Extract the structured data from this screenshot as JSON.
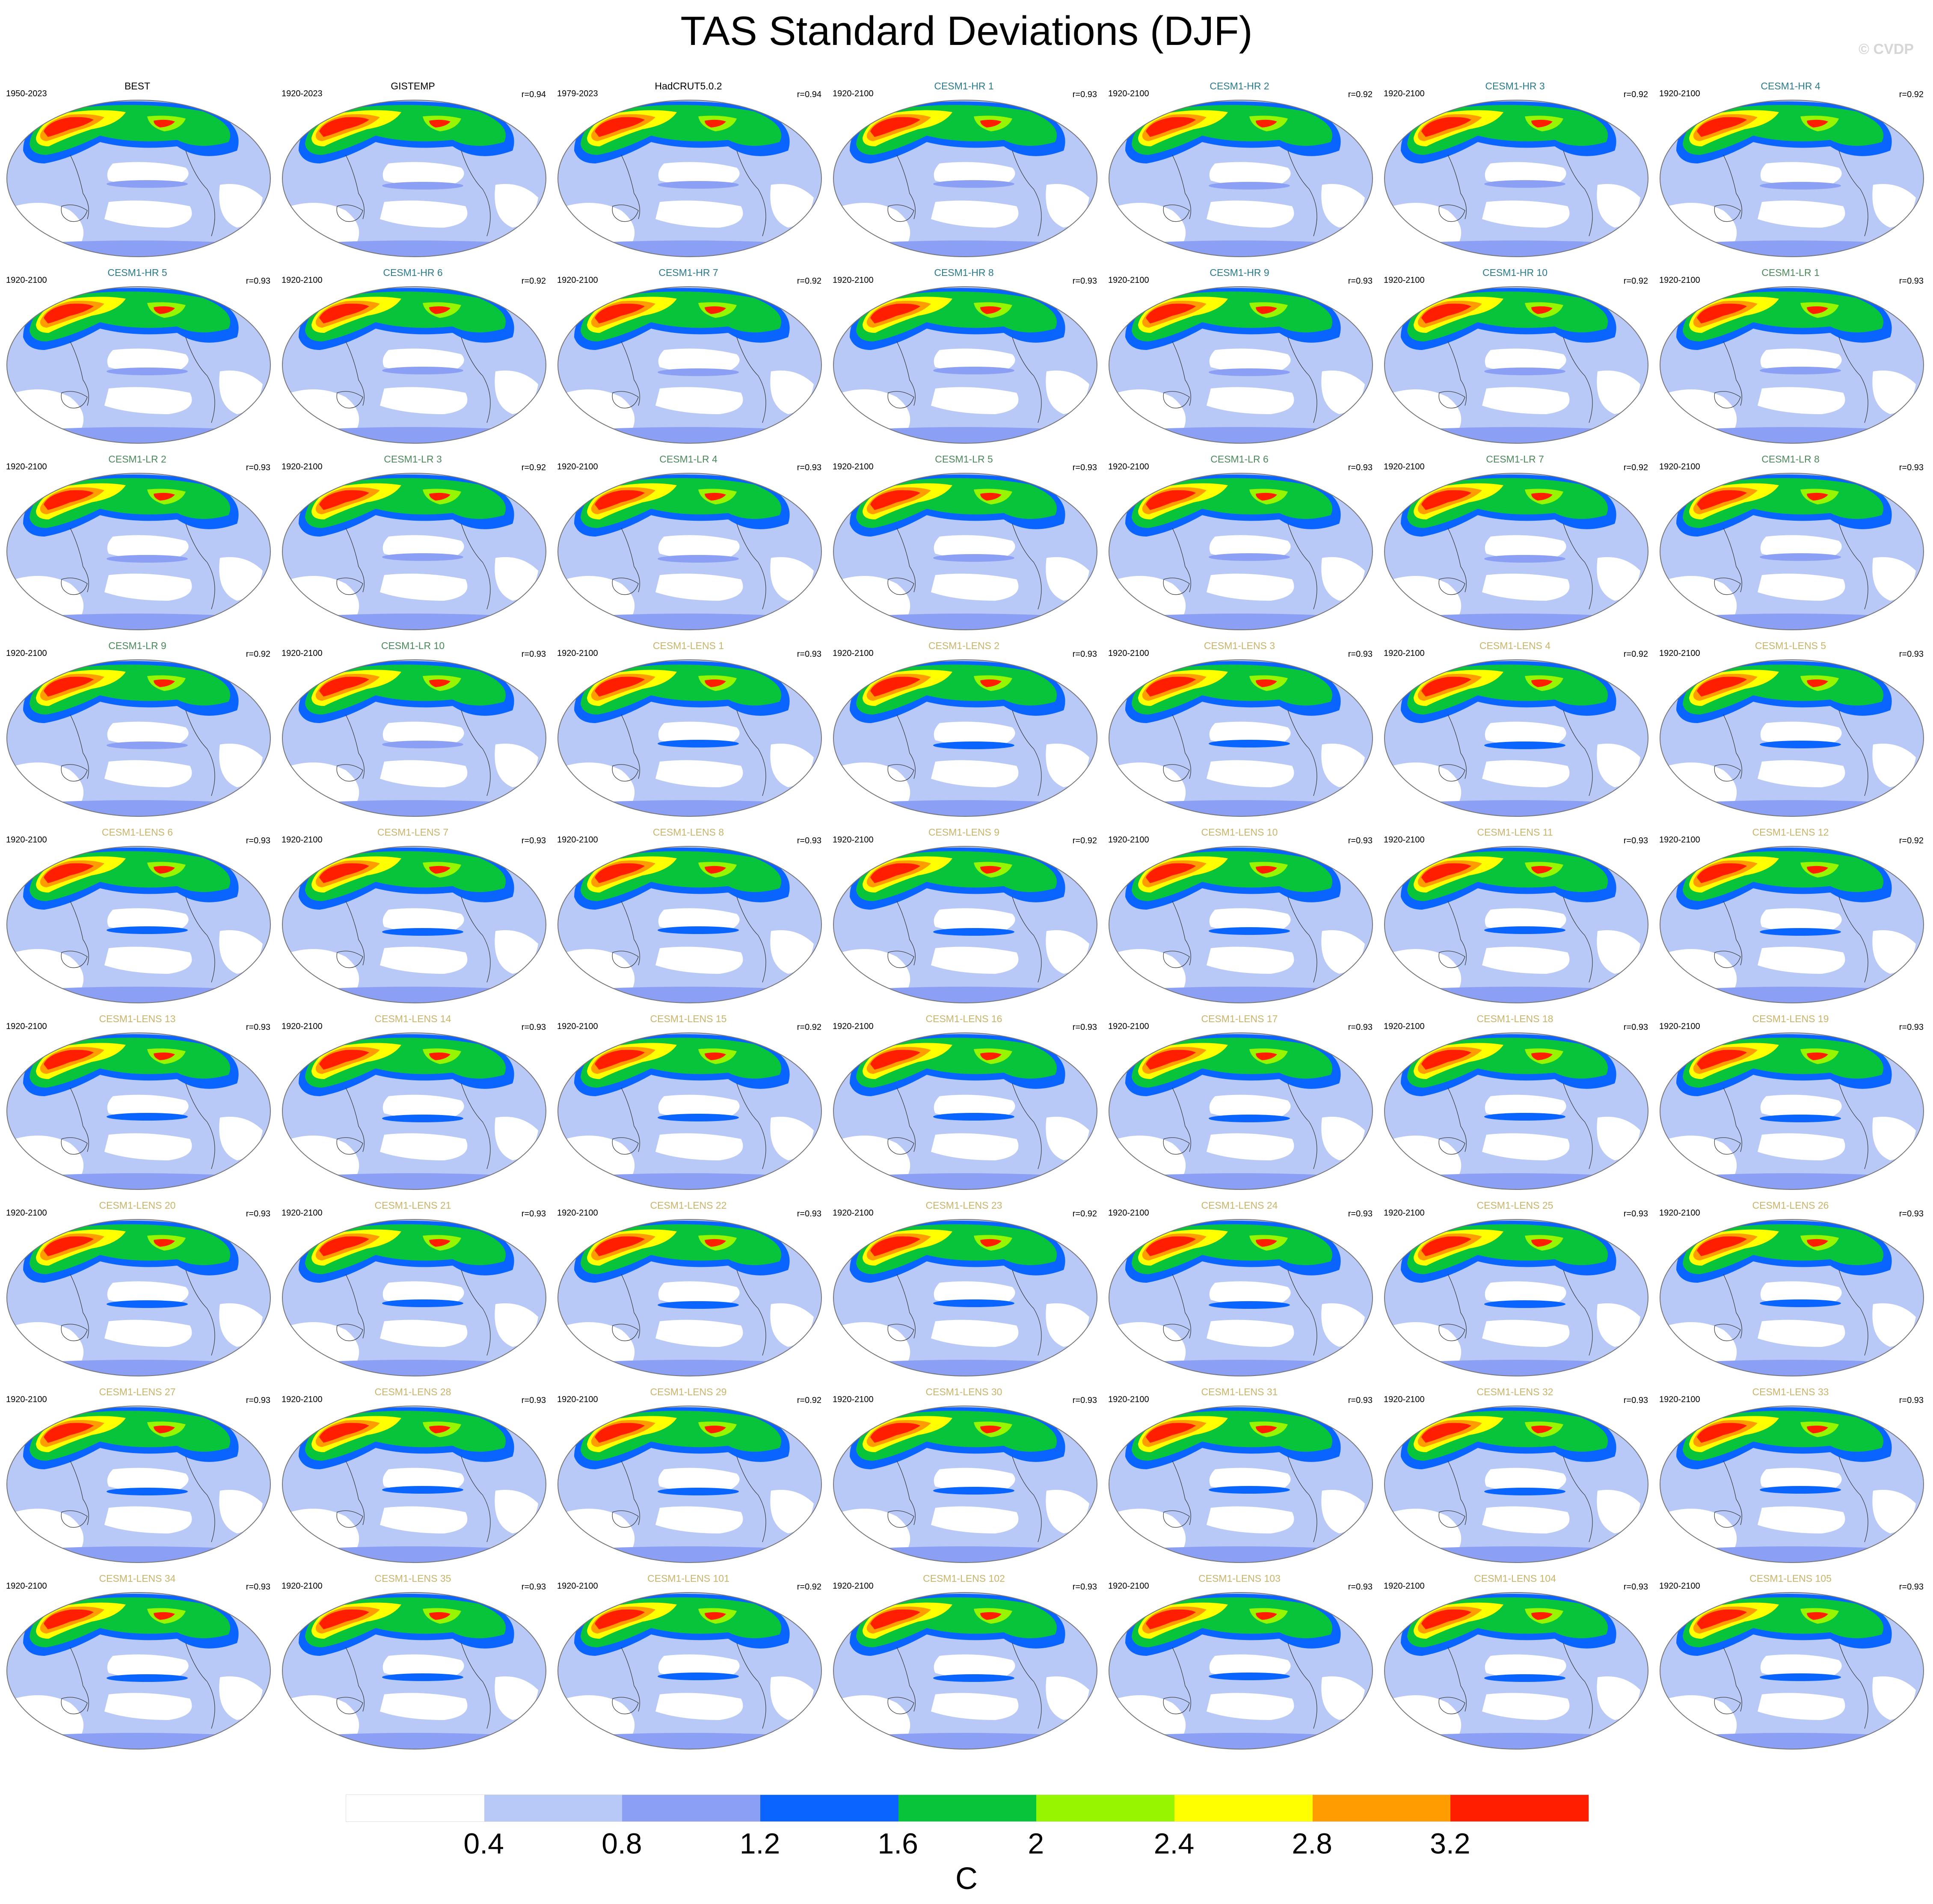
{
  "title": "TAS Standard Deviations (DJF)",
  "credit": "© CVDP",
  "colors": {
    "levels": [
      "#ffffff",
      "#b8c9f8",
      "#8b9ff5",
      "#0a64ff",
      "#08c43a",
      "#98f500",
      "#ffff00",
      "#ff9c00",
      "#ff1e00"
    ],
    "name_obs": "#000000",
    "name_hr": "#2a7b8c",
    "name_lr": "#4a8a5a",
    "name_lens": "#c9b46a"
  },
  "colorbar": {
    "ticks": [
      "0.4",
      "0.8",
      "1.2",
      "1.6",
      "2",
      "2.4",
      "2.8",
      "3.2"
    ],
    "units": "C"
  },
  "panels": [
    {
      "name": "BEST",
      "period": "1950-2023",
      "r": "",
      "group": "obs"
    },
    {
      "name": "GISTEMP",
      "period": "1920-2023",
      "r": "r=0.94",
      "group": "obs"
    },
    {
      "name": "HadCRUT5.0.2",
      "period": "1979-2023",
      "r": "r=0.94",
      "group": "obs"
    },
    {
      "name": "CESM1-HR 1",
      "period": "1920-2100",
      "r": "r=0.93",
      "group": "hr"
    },
    {
      "name": "CESM1-HR 2",
      "period": "1920-2100",
      "r": "r=0.92",
      "group": "hr"
    },
    {
      "name": "CESM1-HR 3",
      "period": "1920-2100",
      "r": "r=0.92",
      "group": "hr"
    },
    {
      "name": "CESM1-HR 4",
      "period": "1920-2100",
      "r": "r=0.92",
      "group": "hr"
    },
    {
      "name": "CESM1-HR 5",
      "period": "1920-2100",
      "r": "r=0.93",
      "group": "hr"
    },
    {
      "name": "CESM1-HR 6",
      "period": "1920-2100",
      "r": "r=0.92",
      "group": "hr"
    },
    {
      "name": "CESM1-HR 7",
      "period": "1920-2100",
      "r": "r=0.92",
      "group": "hr"
    },
    {
      "name": "CESM1-HR 8",
      "period": "1920-2100",
      "r": "r=0.93",
      "group": "hr"
    },
    {
      "name": "CESM1-HR 9",
      "period": "1920-2100",
      "r": "r=0.93",
      "group": "hr"
    },
    {
      "name": "CESM1-HR 10",
      "period": "1920-2100",
      "r": "r=0.92",
      "group": "hr"
    },
    {
      "name": "CESM1-LR 1",
      "period": "1920-2100",
      "r": "r=0.93",
      "group": "lr"
    },
    {
      "name": "CESM1-LR 2",
      "period": "1920-2100",
      "r": "r=0.93",
      "group": "lr"
    },
    {
      "name": "CESM1-LR 3",
      "period": "1920-2100",
      "r": "r=0.92",
      "group": "lr"
    },
    {
      "name": "CESM1-LR 4",
      "period": "1920-2100",
      "r": "r=0.93",
      "group": "lr"
    },
    {
      "name": "CESM1-LR 5",
      "period": "1920-2100",
      "r": "r=0.93",
      "group": "lr"
    },
    {
      "name": "CESM1-LR 6",
      "period": "1920-2100",
      "r": "r=0.93",
      "group": "lr"
    },
    {
      "name": "CESM1-LR 7",
      "period": "1920-2100",
      "r": "r=0.92",
      "group": "lr"
    },
    {
      "name": "CESM1-LR 8",
      "period": "1920-2100",
      "r": "r=0.93",
      "group": "lr"
    },
    {
      "name": "CESM1-LR 9",
      "period": "1920-2100",
      "r": "r=0.92",
      "group": "lr"
    },
    {
      "name": "CESM1-LR 10",
      "period": "1920-2100",
      "r": "r=0.93",
      "group": "lr"
    },
    {
      "name": "CESM1-LENS 1",
      "period": "1920-2100",
      "r": "r=0.93",
      "group": "lens"
    },
    {
      "name": "CESM1-LENS 2",
      "period": "1920-2100",
      "r": "r=0.93",
      "group": "lens"
    },
    {
      "name": "CESM1-LENS 3",
      "period": "1920-2100",
      "r": "r=0.93",
      "group": "lens"
    },
    {
      "name": "CESM1-LENS 4",
      "period": "1920-2100",
      "r": "r=0.92",
      "group": "lens"
    },
    {
      "name": "CESM1-LENS 5",
      "period": "1920-2100",
      "r": "r=0.93",
      "group": "lens"
    },
    {
      "name": "CESM1-LENS 6",
      "period": "1920-2100",
      "r": "r=0.93",
      "group": "lens"
    },
    {
      "name": "CESM1-LENS 7",
      "period": "1920-2100",
      "r": "r=0.93",
      "group": "lens"
    },
    {
      "name": "CESM1-LENS 8",
      "period": "1920-2100",
      "r": "r=0.93",
      "group": "lens"
    },
    {
      "name": "CESM1-LENS 9",
      "period": "1920-2100",
      "r": "r=0.92",
      "group": "lens"
    },
    {
      "name": "CESM1-LENS 10",
      "period": "1920-2100",
      "r": "r=0.93",
      "group": "lens"
    },
    {
      "name": "CESM1-LENS 11",
      "period": "1920-2100",
      "r": "r=0.93",
      "group": "lens"
    },
    {
      "name": "CESM1-LENS 12",
      "period": "1920-2100",
      "r": "r=0.92",
      "group": "lens"
    },
    {
      "name": "CESM1-LENS 13",
      "period": "1920-2100",
      "r": "r=0.93",
      "group": "lens"
    },
    {
      "name": "CESM1-LENS 14",
      "period": "1920-2100",
      "r": "r=0.93",
      "group": "lens"
    },
    {
      "name": "CESM1-LENS 15",
      "period": "1920-2100",
      "r": "r=0.92",
      "group": "lens"
    },
    {
      "name": "CESM1-LENS 16",
      "period": "1920-2100",
      "r": "r=0.93",
      "group": "lens"
    },
    {
      "name": "CESM1-LENS 17",
      "period": "1920-2100",
      "r": "r=0.93",
      "group": "lens"
    },
    {
      "name": "CESM1-LENS 18",
      "period": "1920-2100",
      "r": "r=0.93",
      "group": "lens"
    },
    {
      "name": "CESM1-LENS 19",
      "period": "1920-2100",
      "r": "r=0.93",
      "group": "lens"
    },
    {
      "name": "CESM1-LENS 20",
      "period": "1920-2100",
      "r": "r=0.93",
      "group": "lens"
    },
    {
      "name": "CESM1-LENS 21",
      "period": "1920-2100",
      "r": "r=0.93",
      "group": "lens"
    },
    {
      "name": "CESM1-LENS 22",
      "period": "1920-2100",
      "r": "r=0.93",
      "group": "lens"
    },
    {
      "name": "CESM1-LENS 23",
      "period": "1920-2100",
      "r": "r=0.92",
      "group": "lens"
    },
    {
      "name": "CESM1-LENS 24",
      "period": "1920-2100",
      "r": "r=0.93",
      "group": "lens"
    },
    {
      "name": "CESM1-LENS 25",
      "period": "1920-2100",
      "r": "r=0.93",
      "group": "lens"
    },
    {
      "name": "CESM1-LENS 26",
      "period": "1920-2100",
      "r": "r=0.93",
      "group": "lens"
    },
    {
      "name": "CESM1-LENS 27",
      "period": "1920-2100",
      "r": "r=0.93",
      "group": "lens"
    },
    {
      "name": "CESM1-LENS 28",
      "period": "1920-2100",
      "r": "r=0.93",
      "group": "lens"
    },
    {
      "name": "CESM1-LENS 29",
      "period": "1920-2100",
      "r": "r=0.92",
      "group": "lens"
    },
    {
      "name": "CESM1-LENS 30",
      "period": "1920-2100",
      "r": "r=0.93",
      "group": "lens"
    },
    {
      "name": "CESM1-LENS 31",
      "period": "1920-2100",
      "r": "r=0.93",
      "group": "lens"
    },
    {
      "name": "CESM1-LENS 32",
      "period": "1920-2100",
      "r": "r=0.93",
      "group": "lens"
    },
    {
      "name": "CESM1-LENS 33",
      "period": "1920-2100",
      "r": "r=0.93",
      "group": "lens"
    },
    {
      "name": "CESM1-LENS 34",
      "period": "1920-2100",
      "r": "r=0.93",
      "group": "lens"
    },
    {
      "name": "CESM1-LENS 35",
      "period": "1920-2100",
      "r": "r=0.93",
      "group": "lens"
    },
    {
      "name": "CESM1-LENS 101",
      "period": "1920-2100",
      "r": "r=0.92",
      "group": "lens"
    },
    {
      "name": "CESM1-LENS 102",
      "period": "1920-2100",
      "r": "r=0.93",
      "group": "lens"
    },
    {
      "name": "CESM1-LENS 103",
      "period": "1920-2100",
      "r": "r=0.93",
      "group": "lens"
    },
    {
      "name": "CESM1-LENS 104",
      "period": "1920-2100",
      "r": "r=0.93",
      "group": "lens"
    },
    {
      "name": "CESM1-LENS 105",
      "period": "1920-2100",
      "r": "r=0.93",
      "group": "lens"
    }
  ]
}
